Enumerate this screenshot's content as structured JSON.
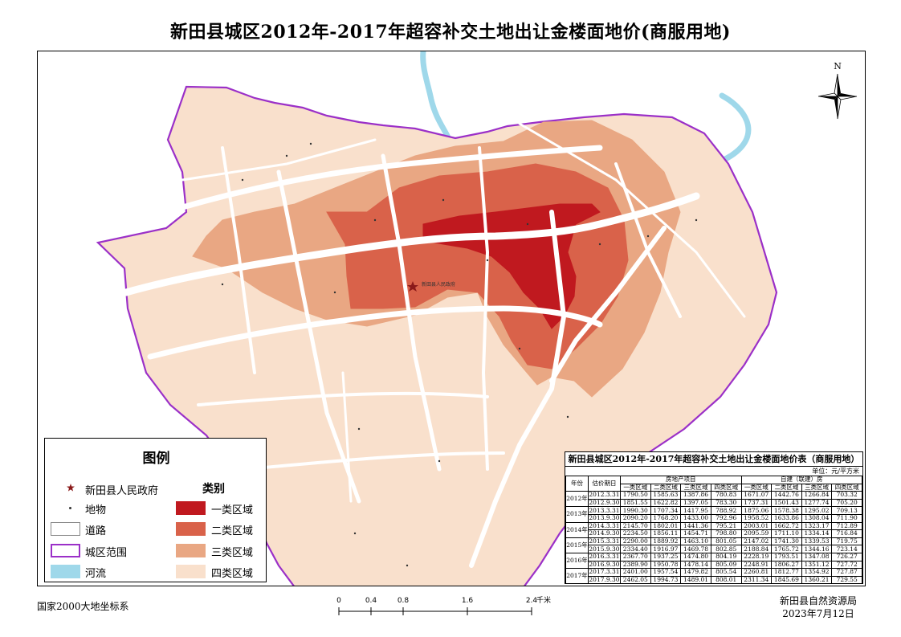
{
  "title": "新田县城区2012年-2017年超容补交土地出让金楼面地价(商服用地)",
  "north_label": "N",
  "map_label": "新田县人民政府",
  "legend": {
    "title": "图例",
    "category_heading": "类别",
    "items": [
      {
        "label": "新田县人民政府",
        "symbol": "star",
        "color": "#8b1a1a"
      },
      {
        "label": "地物",
        "symbol": "dot",
        "color": "#333333"
      },
      {
        "label": "道路",
        "symbol": "box",
        "color": "#ffffff"
      },
      {
        "label": "城区范围",
        "symbol": "outline",
        "color": "#9b30c8"
      },
      {
        "label": "河流",
        "symbol": "fill",
        "color": "#9fd8ea"
      }
    ],
    "categories": [
      {
        "label": "一类区域",
        "color": "#c0191f"
      },
      {
        "label": "二类区域",
        "color": "#d9624a"
      },
      {
        "label": "三类区域",
        "color": "#e9a783"
      },
      {
        "label": "四类区域",
        "color": "#f9e0cc"
      }
    ]
  },
  "table": {
    "title": "新田县城区2012年-2017年超容补交土地出让金楼面地价表（商服用地）",
    "unit": "单位：元/平方米",
    "col_year": "年份",
    "col_date": "估价期日",
    "group_a": "房地产项目",
    "group_b": "自建（联建）房",
    "sub_headers": [
      "一类区域",
      "二类区域",
      "三类区域",
      "四类区域",
      "一类区域",
      "二类区域",
      "三类区域",
      "四类区域"
    ],
    "years": [
      "2012年",
      "2013年",
      "2014年",
      "2015年",
      "2016年",
      "2017年"
    ],
    "rows": [
      [
        "2012.3.31",
        "1790.50",
        "1585.63",
        "1387.86",
        "780.83",
        "1671.07",
        "1442.76",
        "1266.84",
        "703.32"
      ],
      [
        "2012.9.30",
        "1851.55",
        "1622.82",
        "1397.05",
        "783.30",
        "1737.31",
        "1501.43",
        "1277.74",
        "705.20"
      ],
      [
        "2013.3.31",
        "1990.30",
        "1707.34",
        "1417.95",
        "788.92",
        "1875.06",
        "1578.38",
        "1295.02",
        "709.13"
      ],
      [
        "2013.9.30",
        "2090.20",
        "1768.20",
        "1433.00",
        "792.96",
        "1958.52",
        "1633.86",
        "1308.04",
        "711.90"
      ],
      [
        "2014.3.31",
        "2145.70",
        "1802.01",
        "1441.36",
        "795.21",
        "2003.01",
        "1662.72",
        "1323.17",
        "712.89"
      ],
      [
        "2014.9.30",
        "2234.50",
        "1856.11",
        "1454.71",
        "798.80",
        "2095.59",
        "1711.10",
        "1334.14",
        "716.84"
      ],
      [
        "2015.3.31",
        "2290.00",
        "1889.92",
        "1463.10",
        "801.05",
        "2147.02",
        "1741.30",
        "1339.53",
        "719.75"
      ],
      [
        "2015.9.30",
        "2334.40",
        "1916.97",
        "1469.78",
        "802.85",
        "2188.84",
        "1765.72",
        "1344.16",
        "723.14"
      ],
      [
        "2016.3.31",
        "2367.70",
        "1937.25",
        "1474.80",
        "804.19",
        "2228.19",
        "1793.51",
        "1347.08",
        "726.27"
      ],
      [
        "2016.9.30",
        "2389.90",
        "1950.78",
        "1478.14",
        "805.09",
        "2248.91",
        "1806.27",
        "1351.12",
        "727.72"
      ],
      [
        "2017.3.31",
        "2401.00",
        "1957.54",
        "1479.82",
        "805.54",
        "2260.81",
        "1812.77",
        "1354.92",
        "727.87"
      ],
      [
        "2017.9.30",
        "2462.05",
        "1994.73",
        "1489.01",
        "808.01",
        "2311.34",
        "1845.69",
        "1360.21",
        "729.55"
      ]
    ]
  },
  "scale": {
    "ticks": [
      "0",
      "0.4",
      "0.8",
      "1.6",
      "2.4"
    ],
    "ticks_km": [
      0,
      0.4,
      0.8,
      1.6,
      2.4
    ],
    "unit": "千米"
  },
  "footer": {
    "left": "国家2000大地坐标系",
    "org": "新田县自然资源局",
    "date": "2023年7月12日"
  },
  "colors": {
    "zone1": "#c0191f",
    "zone2": "#d9624a",
    "zone3": "#e9a783",
    "zone4": "#f9e0cc",
    "boundary": "#9b30c8",
    "river": "#9fd8ea",
    "road": "#ffffff"
  }
}
